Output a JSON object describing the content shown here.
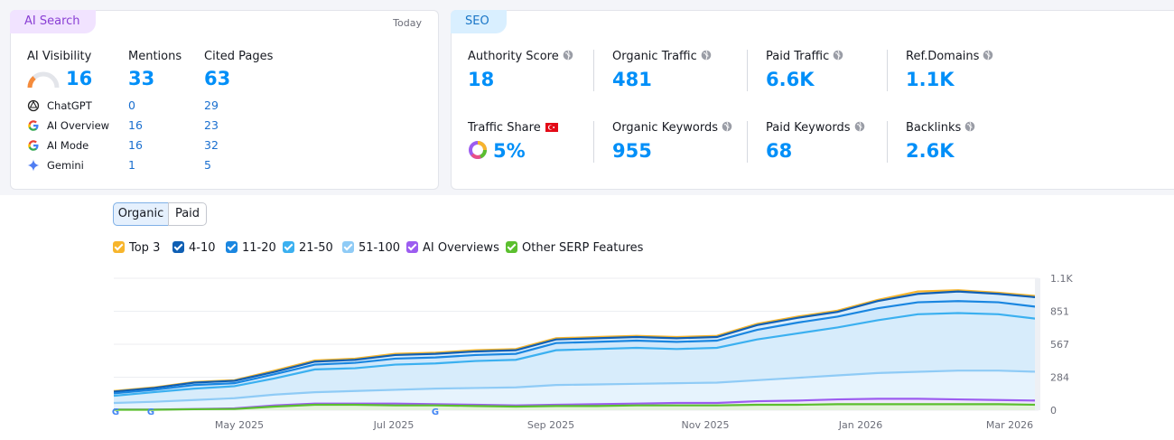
{
  "ai_search": {
    "tag": "AI Search",
    "date": "Today",
    "visibility_label": "AI Visibility",
    "visibility_value": "16",
    "mentions_label": "Mentions",
    "mentions_value": "33",
    "cited_label": "Cited Pages",
    "cited_value": "63",
    "sources": [
      {
        "name": "ChatGPT",
        "mentions": "0",
        "cited": "29",
        "icon": "chatgpt-icon"
      },
      {
        "name": "AI Overview",
        "mentions": "16",
        "cited": "23",
        "icon": "google-icon"
      },
      {
        "name": "AI Mode",
        "mentions": "16",
        "cited": "32",
        "icon": "google-icon"
      },
      {
        "name": "Gemini",
        "mentions": "1",
        "cited": "5",
        "icon": "gemini-icon"
      }
    ]
  },
  "seo": {
    "tag": "SEO",
    "metrics": [
      {
        "label": "Authority Score",
        "value": "18"
      },
      {
        "label": "Organic Traffic",
        "value": "481"
      },
      {
        "label": "Paid Traffic",
        "value": "6.6K"
      },
      {
        "label": "Ref.Domains",
        "value": "1.1K"
      },
      {
        "label": "Traffic Share",
        "value": "5%"
      },
      {
        "label": "Organic Keywords",
        "value": "955"
      },
      {
        "label": "Paid Keywords",
        "value": "68"
      },
      {
        "label": "Backlinks",
        "value": "2.6K"
      }
    ]
  },
  "chart_controls": {
    "organic": "Organic",
    "paid": "Paid",
    "legend": [
      {
        "label": "Top 3",
        "color": "#f7b52c"
      },
      {
        "label": "4-10",
        "color": "#0f5fb4"
      },
      {
        "label": "11-20",
        "color": "#1a86e0"
      },
      {
        "label": "21-50",
        "color": "#3bb0f0"
      },
      {
        "label": "51-100",
        "color": "#8fcbf6"
      },
      {
        "label": "AI Overviews",
        "color": "#9c5cf0"
      },
      {
        "label": "Other SERP Features",
        "color": "#5bbf2e"
      }
    ]
  },
  "chart_data": {
    "type": "area",
    "x": [
      "Apr 2025",
      "Apr 2025",
      "May 2025",
      "May 2025",
      "Jun 2025",
      "Jun 2025",
      "Jul 2025",
      "Jul 2025",
      "Aug 2025",
      "Aug 2025",
      "Sep 2025",
      "Sep 2025",
      "Oct 2025",
      "Oct 2025",
      "Nov 2025",
      "Nov 2025",
      "Dec 2025",
      "Dec 2025",
      "Jan 2026",
      "Jan 2026",
      "Feb 2026",
      "Feb 2026",
      "Mar 2026",
      "Mar 2026"
    ],
    "x_tick_labels": [
      "May 2025",
      "Jul 2025",
      "Sep 2025",
      "Nov 2025",
      "Jan 2026",
      "Mar 2026"
    ],
    "y_ticks": [
      "1.1K",
      "851",
      "567",
      "284",
      "0"
    ],
    "ylim": [
      0,
      1100
    ],
    "series": [
      {
        "name": "Top 3",
        "values": [
          160,
          190,
          235,
          250,
          330,
          415,
          430,
          470,
          480,
          500,
          510,
          600,
          610,
          620,
          610,
          620,
          720,
          780,
          830,
          920,
          990,
          1000,
          980,
          950
        ]
      },
      {
        "name": "4-10",
        "values": [
          155,
          185,
          230,
          245,
          320,
          405,
          420,
          460,
          470,
          490,
          500,
          590,
          600,
          610,
          600,
          610,
          710,
          770,
          820,
          910,
          970,
          990,
          970,
          940
        ]
      },
      {
        "name": "11-20",
        "values": [
          140,
          170,
          210,
          225,
          300,
          380,
          395,
          430,
          440,
          460,
          470,
          560,
          570,
          580,
          570,
          580,
          670,
          730,
          780,
          850,
          900,
          910,
          900,
          860
        ]
      },
      {
        "name": "21-50",
        "values": [
          120,
          150,
          180,
          200,
          265,
          340,
          350,
          380,
          390,
          410,
          420,
          500,
          510,
          520,
          510,
          520,
          590,
          640,
          690,
          750,
          800,
          810,
          800,
          760
        ]
      },
      {
        "name": "51-100",
        "values": [
          60,
          70,
          85,
          100,
          130,
          150,
          160,
          170,
          180,
          185,
          190,
          210,
          215,
          220,
          225,
          230,
          250,
          270,
          290,
          310,
          320,
          330,
          330,
          320
        ]
      },
      {
        "name": "AI Overviews",
        "values": [
          5,
          5,
          10,
          15,
          40,
          55,
          55,
          55,
          50,
          45,
          40,
          45,
          50,
          55,
          60,
          60,
          75,
          80,
          90,
          95,
          95,
          90,
          85,
          80
        ]
      },
      {
        "name": "Other SERP Features",
        "values": [
          4,
          4,
          8,
          10,
          30,
          45,
          45,
          40,
          40,
          35,
          30,
          35,
          35,
          40,
          40,
          40,
          45,
          45,
          50,
          50,
          50,
          50,
          50,
          45
        ]
      }
    ]
  }
}
